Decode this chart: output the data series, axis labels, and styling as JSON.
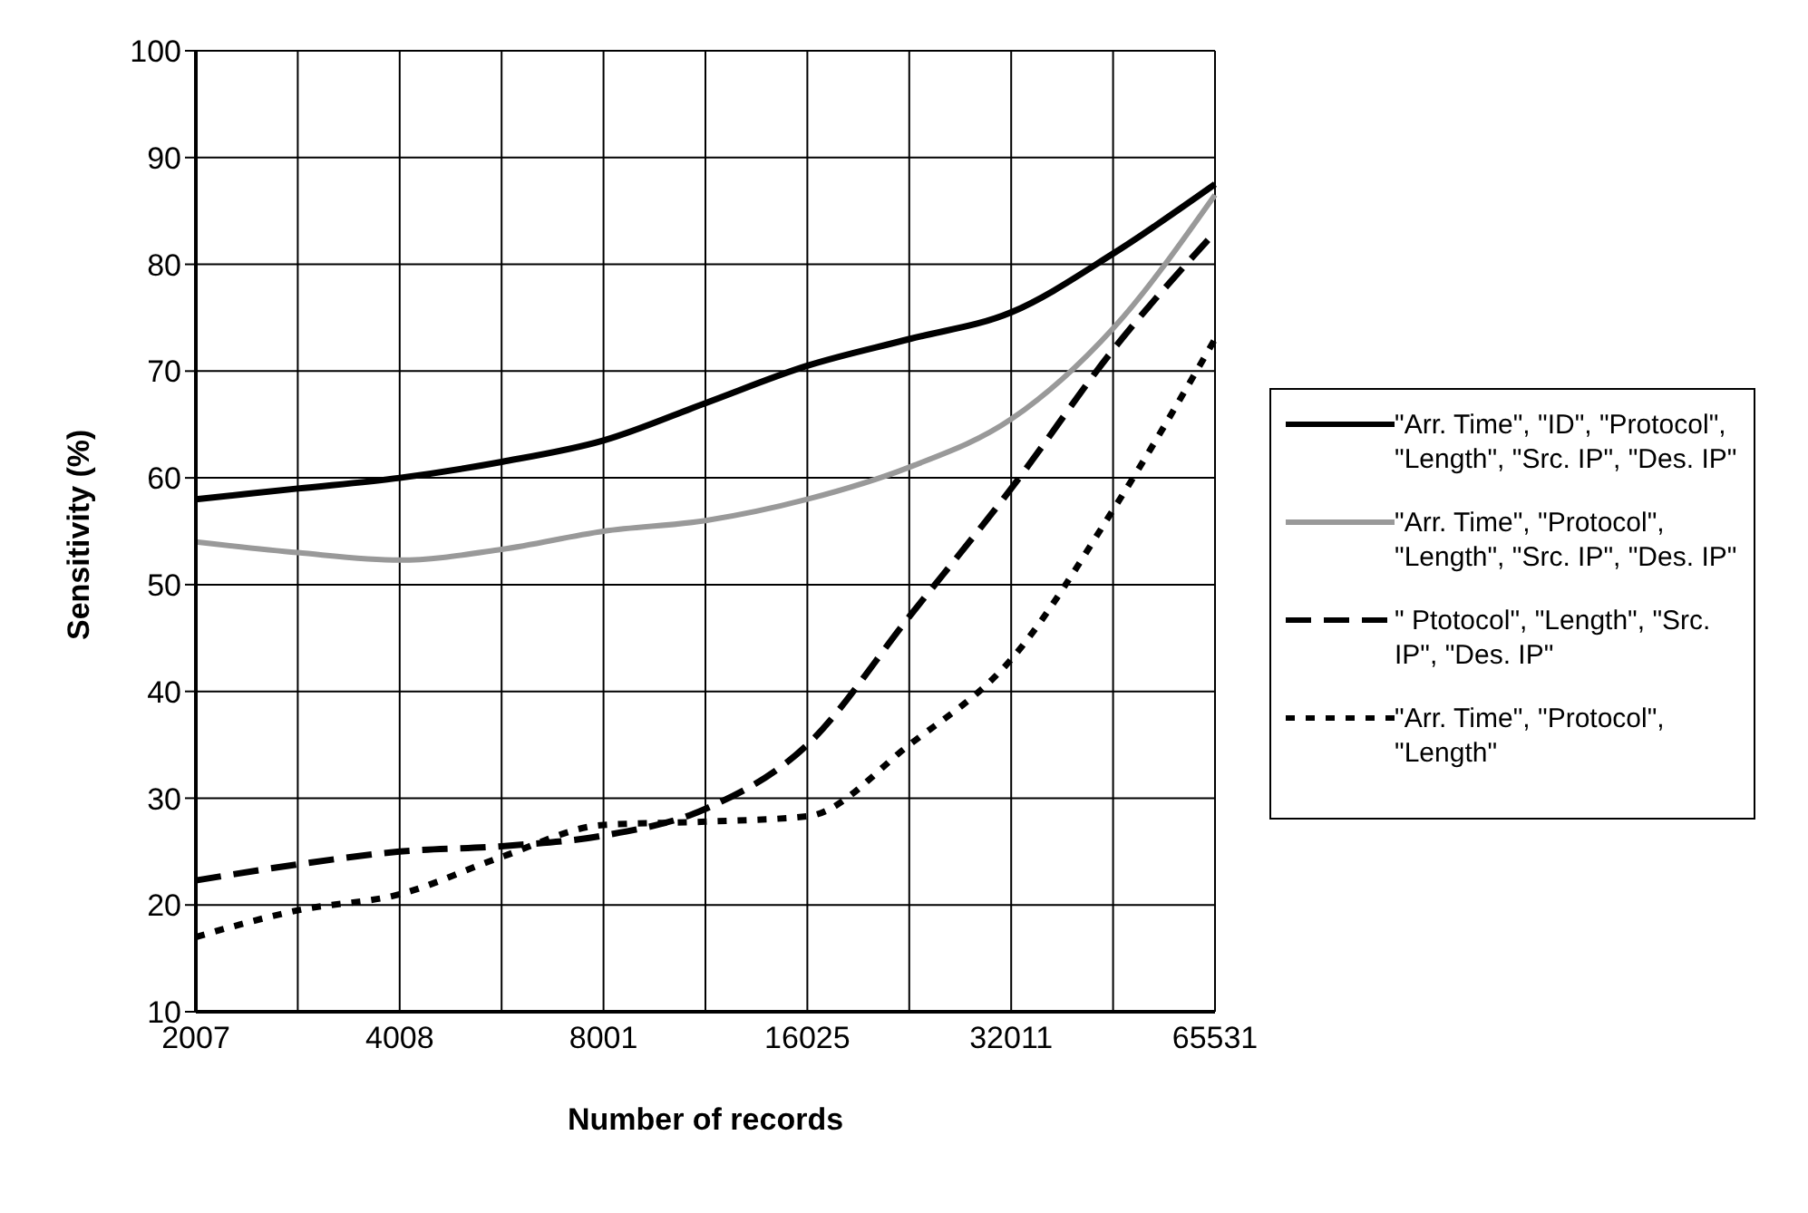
{
  "chart_data": {
    "type": "line",
    "xlabel": "Number of records",
    "ylabel": "Sensitivity (%)",
    "categories": [
      "2007",
      null,
      "4008",
      null,
      "8001",
      null,
      "16025",
      null,
      "32011",
      null,
      "65531"
    ],
    "series": [
      {
        "name": "\"Arr. Time\", \"ID\", \"Protocol\", \"Length\", \"Src. IP\", \"Des. IP\"",
        "color": "#000000",
        "line_style": "solid",
        "values": [
          58,
          59,
          60,
          61.5,
          63.5,
          67,
          70.5,
          73,
          75.5,
          81,
          87.5
        ]
      },
      {
        "name": "\"Arr. Time\", \"Protocol\", \"Length\", \"Src. IP\", \"Des. IP\"",
        "color": "#999999",
        "line_style": "solid",
        "values": [
          54,
          53,
          52.3,
          53.3,
          55,
          56,
          58,
          61,
          65.5,
          74,
          86.5
        ]
      },
      {
        "name": "\" Ptotocol\", \"Length\", \"Src. IP\", \"Des. IP\"",
        "color": "#000000",
        "line_style": "dashed",
        "values": [
          22.3,
          23.8,
          25,
          25.5,
          26.5,
          29,
          35,
          47,
          59,
          72,
          83
        ]
      },
      {
        "name": "\"Arr. Time\", \"Protocol\", \"Length\"",
        "color": "#000000",
        "line_style": "dotted",
        "values": [
          17,
          19.5,
          21,
          24.5,
          27.5,
          27.8,
          28.3,
          35,
          43,
          57,
          73
        ]
      }
    ],
    "ylim": [
      10,
      100
    ],
    "yticks": [
      10,
      20,
      30,
      40,
      50,
      60,
      70,
      80,
      90,
      100
    ],
    "grid": true,
    "legend": "right",
    "marker": "none"
  }
}
